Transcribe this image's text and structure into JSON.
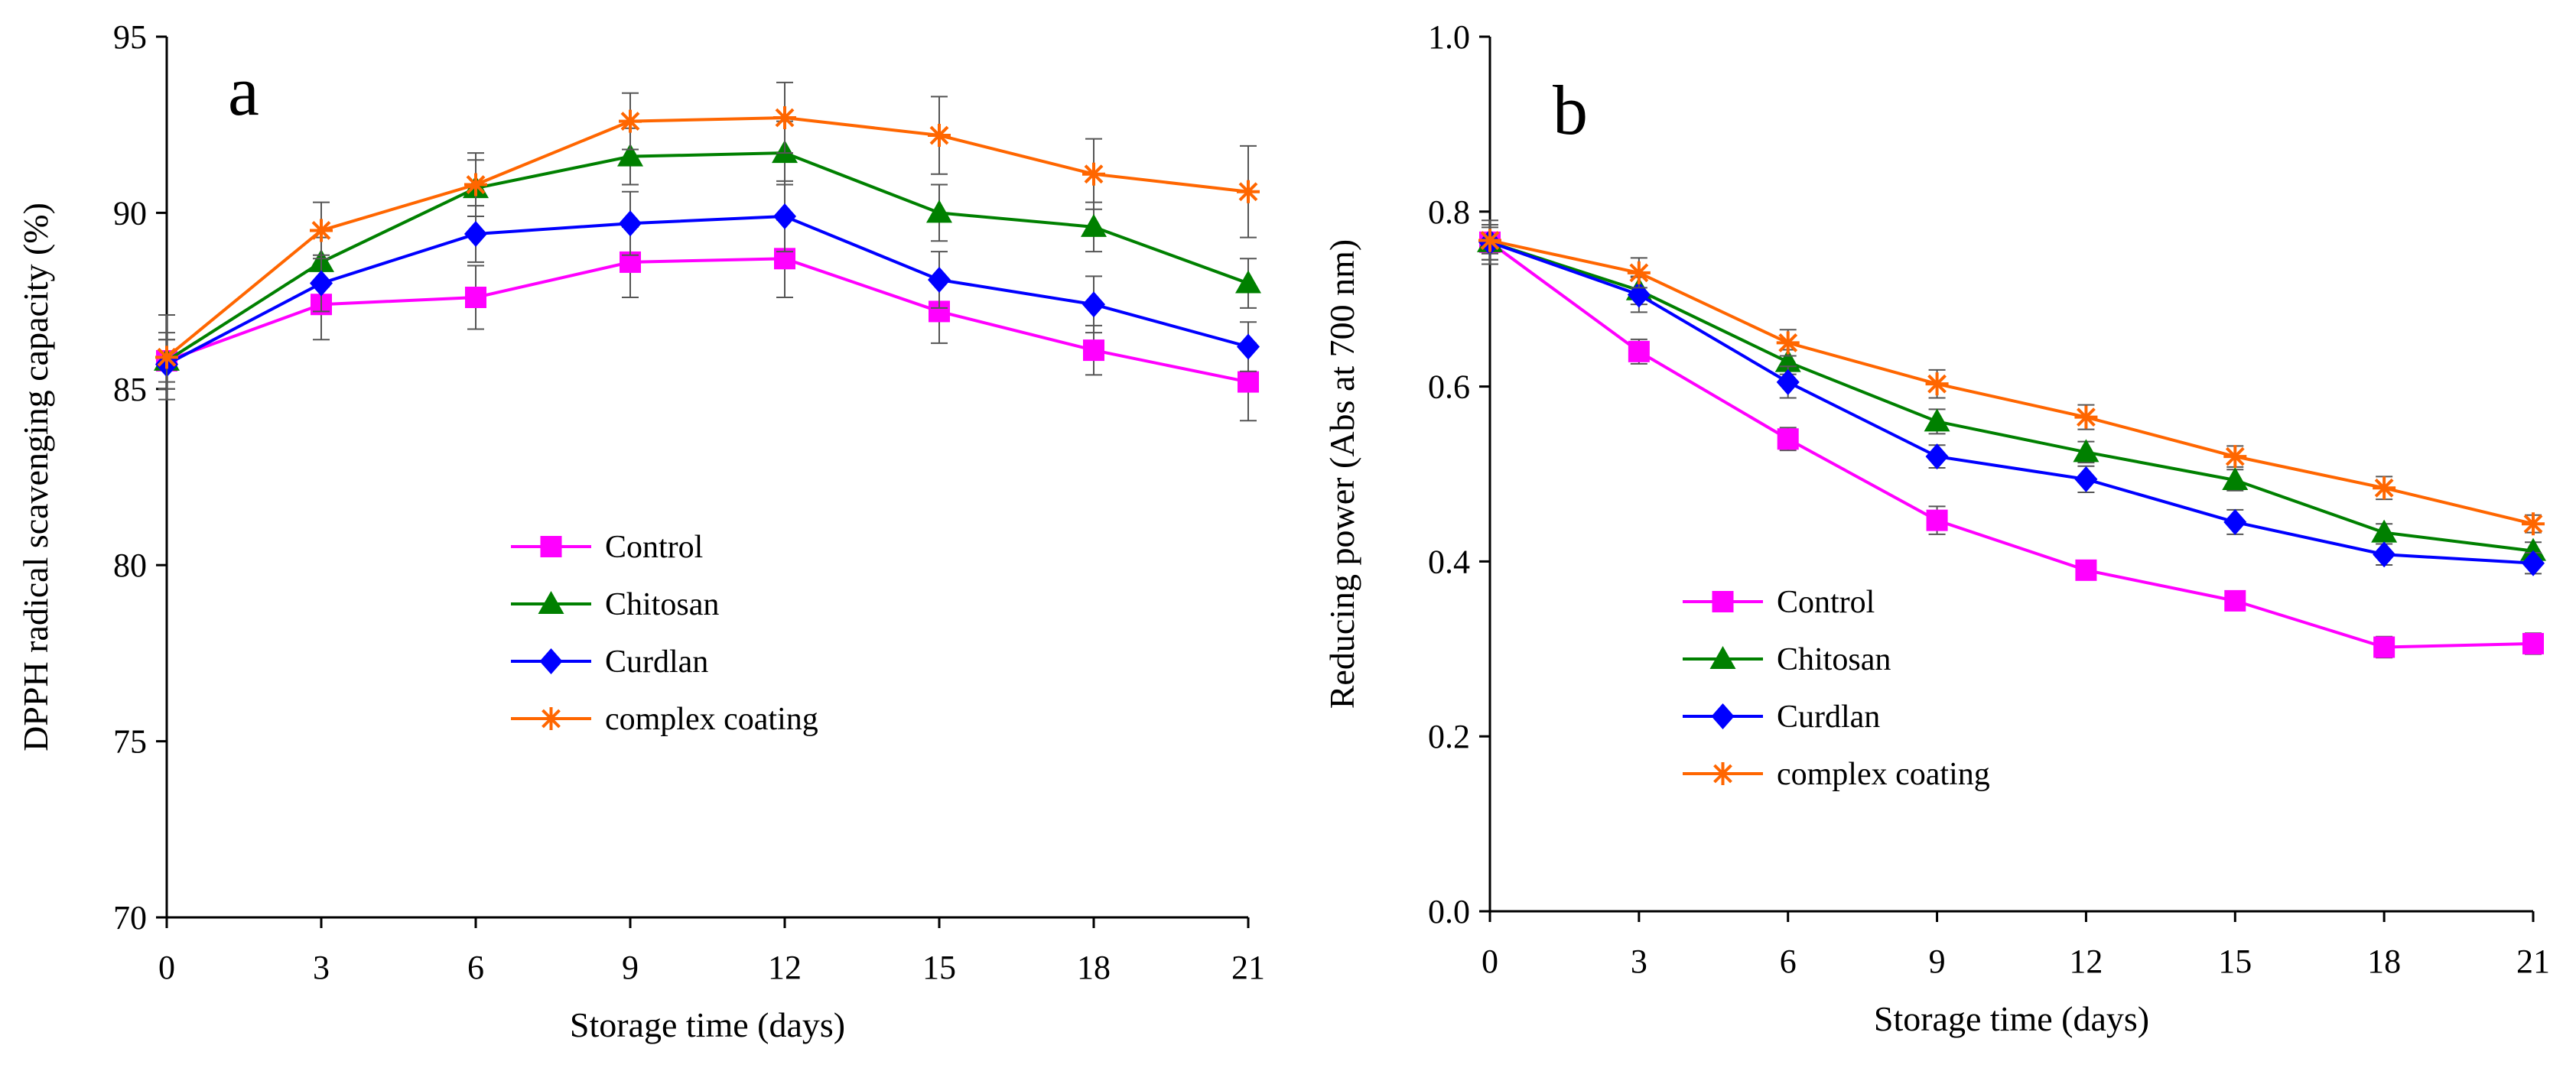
{
  "chart_data": [
    {
      "type": "line",
      "panel_label": "a",
      "xlabel": "Storage time (days)",
      "ylabel": "DPPH radical scavenging capacity (%)",
      "x": [
        0,
        3,
        6,
        9,
        12,
        15,
        18,
        21
      ],
      "x_ticks": [
        "0",
        "3",
        "6",
        "9",
        "12",
        "15",
        "18",
        "21"
      ],
      "y_ticks": [
        "70",
        "75",
        "80",
        "85",
        "90",
        "95"
      ],
      "xlim": [
        0,
        21
      ],
      "ylim": [
        70,
        95
      ],
      "legend_position": "center-left",
      "series": [
        {
          "name": "Control",
          "color": "#ff00ff",
          "marker": "square",
          "values": [
            85.8,
            87.4,
            87.6,
            88.6,
            88.7,
            87.2,
            86.1,
            85.2
          ],
          "errors": [
            0.8,
            1.0,
            0.9,
            1.0,
            1.1,
            0.9,
            0.7,
            1.1
          ]
        },
        {
          "name": "Chitosan",
          "color": "#008000",
          "marker": "triangle",
          "values": [
            85.8,
            88.6,
            90.7,
            91.6,
            91.7,
            90.0,
            89.6,
            88.0
          ],
          "errors": [
            0.6,
            0.7,
            0.8,
            0.8,
            0.9,
            0.8,
            0.7,
            0.7
          ]
        },
        {
          "name": "Curdlan",
          "color": "#0000ff",
          "marker": "diamond",
          "values": [
            85.7,
            88.0,
            89.4,
            89.7,
            89.9,
            88.1,
            87.4,
            86.2
          ],
          "errors": [
            0.7,
            0.8,
            0.8,
            0.9,
            1.0,
            0.8,
            0.8,
            0.7
          ]
        },
        {
          "name": "complex coating",
          "color": "#ff6600",
          "marker": "star",
          "values": [
            85.9,
            89.5,
            90.8,
            92.6,
            92.7,
            92.2,
            91.1,
            90.6
          ],
          "errors": [
            1.2,
            0.8,
            0.9,
            0.8,
            1.0,
            1.1,
            1.0,
            1.3
          ]
        }
      ]
    },
    {
      "type": "line",
      "panel_label": "b",
      "xlabel": "Storage time (days)",
      "ylabel": "Reducing power (Abs at 700 nm)",
      "x": [
        0,
        3,
        6,
        9,
        12,
        15,
        18,
        21
      ],
      "x_ticks": [
        "0",
        "3",
        "6",
        "9",
        "12",
        "15",
        "18",
        "21"
      ],
      "y_ticks": [
        "0.0",
        "0.2",
        "0.4",
        "0.6",
        "0.8",
        "1.0"
      ],
      "xlim": [
        0,
        21
      ],
      "ylim": [
        0,
        1.0
      ],
      "legend_position": "center-left",
      "series": [
        {
          "name": "Control",
          "color": "#ff00ff",
          "marker": "square",
          "values": [
            0.765,
            0.64,
            0.54,
            0.447,
            0.39,
            0.355,
            0.302,
            0.306
          ],
          "errors": [
            0.02,
            0.014,
            0.013,
            0.016,
            0.01,
            0.01,
            0.012,
            0.012
          ]
        },
        {
          "name": "Chitosan",
          "color": "#008000",
          "marker": "triangle",
          "values": [
            0.765,
            0.71,
            0.628,
            0.56,
            0.525,
            0.493,
            0.433,
            0.412
          ],
          "errors": [
            0.02,
            0.016,
            0.014,
            0.014,
            0.012,
            0.012,
            0.01,
            0.01
          ]
        },
        {
          "name": "Curdlan",
          "color": "#0000ff",
          "marker": "diamond",
          "values": [
            0.765,
            0.705,
            0.605,
            0.52,
            0.494,
            0.445,
            0.408,
            0.398
          ],
          "errors": [
            0.025,
            0.02,
            0.018,
            0.013,
            0.015,
            0.014,
            0.012,
            0.012
          ]
        },
        {
          "name": "complex coating",
          "color": "#ff6600",
          "marker": "star",
          "values": [
            0.767,
            0.73,
            0.65,
            0.603,
            0.565,
            0.52,
            0.484,
            0.443
          ],
          "errors": [
            0.015,
            0.017,
            0.015,
            0.016,
            0.014,
            0.012,
            0.013,
            0.01
          ]
        }
      ]
    }
  ]
}
